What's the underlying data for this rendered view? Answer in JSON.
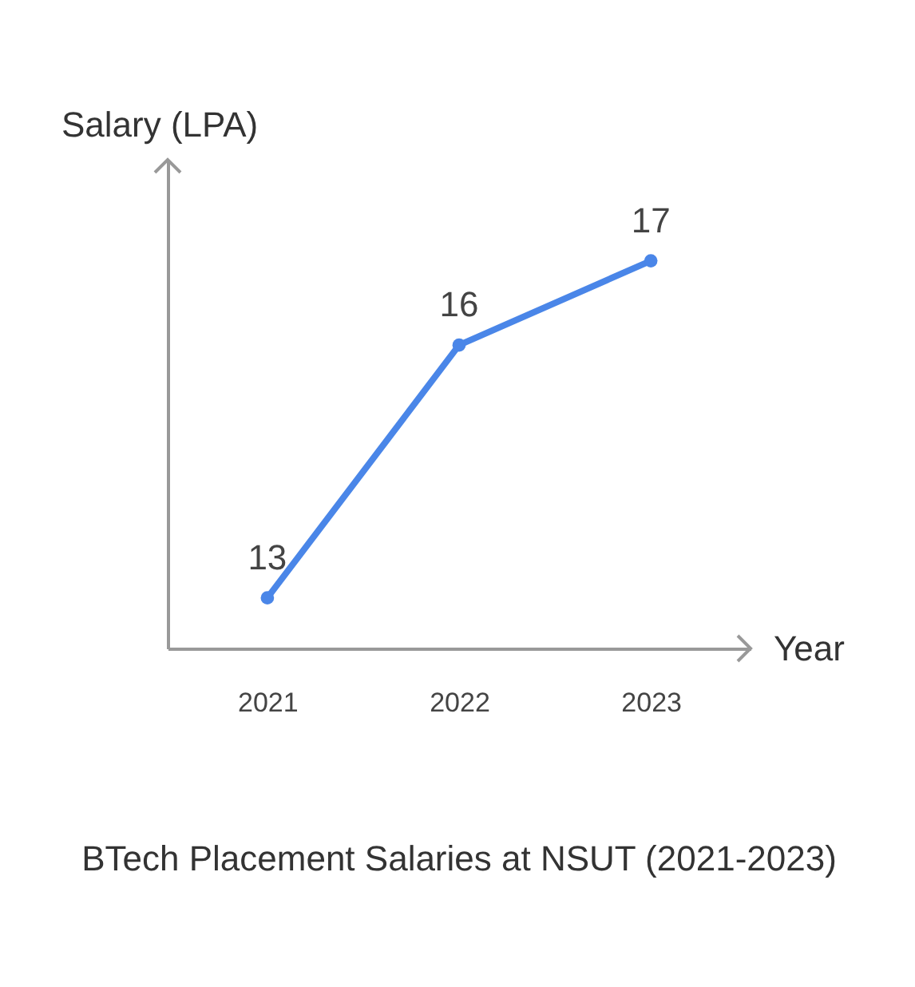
{
  "chart_data": {
    "type": "line",
    "title": "BTech Placement Salaries at NSUT (2021-2023)",
    "xlabel": "Year",
    "ylabel": "Salary (LPA)",
    "categories": [
      "2021",
      "2022",
      "2023"
    ],
    "series": [
      {
        "color": "#4a86e8",
        "values": [
          13,
          16,
          17
        ]
      }
    ],
    "ylim": [
      12.4,
      18.2
    ],
    "data_labels": true,
    "marker": "circle",
    "tick_labels": "x"
  }
}
